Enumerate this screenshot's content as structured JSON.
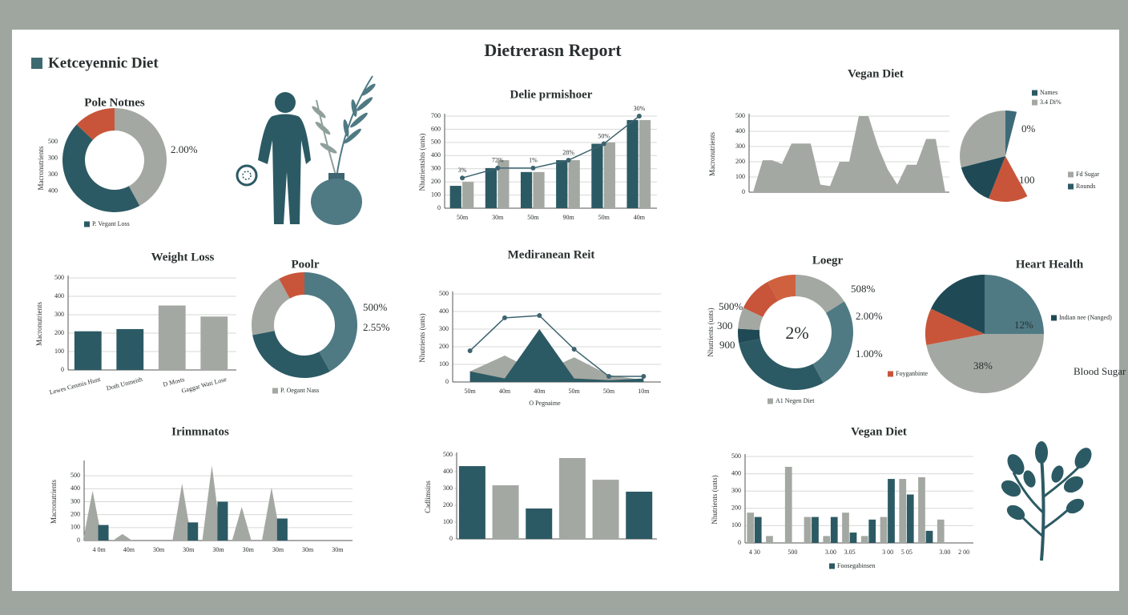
{
  "header": {
    "title": "Dietrerasn Report",
    "section": "Ketceyennic Diet"
  },
  "chart_data": [
    {
      "type": "pie",
      "title": "Pole Notnes",
      "hole": true,
      "values": [
        42,
        45,
        13
      ],
      "colors": [
        "#a4a8a2",
        "#2c5a64",
        "#c8553a"
      ],
      "annotations": [
        "2.00%"
      ],
      "legend": [
        {
          "name": "P. Vegant Loss",
          "color": "#2c5a64"
        }
      ],
      "ylabel": "Macronutrients",
      "scale_labels": [
        "500",
        "300",
        "300",
        "400"
      ]
    },
    {
      "type": "bar",
      "title": "Delie prmishoer",
      "ylabel": "Nhutrientshts (unts)",
      "categories": [
        "50m",
        "30m",
        "50m",
        "90m",
        "50m",
        "40m"
      ],
      "ylim": [
        0,
        700
      ],
      "yticks": [
        0,
        100,
        200,
        300,
        400,
        500,
        600,
        700
      ],
      "grid": true,
      "series": [
        {
          "color": "#2c5a64",
          "values": [
            170,
            305,
            275,
            365,
            490,
            670
          ]
        },
        {
          "color": "#a4a8a2",
          "values": [
            200,
            365,
            275,
            365,
            500,
            670
          ]
        },
        {
          "kind": "line",
          "color": "#3d6470",
          "values": [
            230,
            305,
            305,
            365,
            490,
            700
          ],
          "point_labels": [
            "3%",
            "72%",
            "1%",
            "28%",
            "50%",
            "30%"
          ]
        }
      ]
    },
    {
      "type": "area",
      "title": "Vegan Diet",
      "ylabel": "Macronutrients",
      "ylim": [
        0,
        500
      ],
      "yticks": [
        0,
        100,
        200,
        300,
        400,
        500
      ],
      "grid": true,
      "series": [
        {
          "color": "#a4a8a2",
          "values": [
            0,
            210,
            210,
            185,
            320,
            320,
            320,
            50,
            40,
            200,
            200,
            500,
            500,
            300,
            150,
            50,
            180,
            180,
            350,
            350,
            0
          ]
        }
      ]
    },
    {
      "type": "pie",
      "hole": false,
      "values": [
        4,
        38,
        14,
        15,
        29
      ],
      "colors": [
        "#3d6a78",
        "#ffffff",
        "#c8553a",
        "#1f4a55",
        "#a4a8a2"
      ],
      "annotations": [
        "0%",
        "100"
      ],
      "legend": [
        {
          "name": "Names",
          "color": "#2c5a64"
        },
        {
          "name": "3.4 Di%",
          "color": "#a4a8a2"
        },
        {
          "name": "Fd Sugar",
          "color": "#a4a8a2"
        },
        {
          "name": "Rounds",
          "color": "#2c5a64"
        }
      ]
    },
    {
      "type": "bar",
      "title": "Weight Loss",
      "ylabel": "Macronutrients",
      "categories": [
        "Lewes Cenmis Hunt",
        "Doth Unmeith",
        "D Mosts",
        "Gaggar Wati Lose"
      ],
      "ylim": [
        0,
        500
      ],
      "yticks": [
        0,
        100,
        200,
        300,
        400,
        500
      ],
      "grid": true,
      "series": [
        {
          "colors": [
            "#2c5a64",
            "#2c5a64",
            "#a4a8a2",
            "#a4a8a2"
          ],
          "values": [
            210,
            222,
            350,
            290
          ]
        }
      ]
    },
    {
      "type": "pie",
      "title": "Poolr",
      "hole": true,
      "values": [
        42,
        30,
        20,
        8
      ],
      "colors": [
        "#4f7a84",
        "#2c5a64",
        "#a4a8a2",
        "#c8553a"
      ],
      "annotations": [
        "500%",
        "2.55%"
      ],
      "legend": [
        {
          "name": "P. Oegant Nass",
          "color": "#a4a8a2"
        }
      ]
    },
    {
      "type": "line",
      "title": "Mediranean Reit",
      "ylabel": "Nhutrients (unts)",
      "xlabel": "O Pegnaime",
      "categories": [
        "50m",
        "40m",
        "40m",
        "50m",
        "50m",
        "10m"
      ],
      "ylim": [
        0,
        500
      ],
      "yticks": [
        0,
        100,
        200,
        300,
        400,
        500
      ],
      "grid": true,
      "series": [
        {
          "kind": "area",
          "color": "#a4a8a2",
          "values": [
            60,
            150,
            50,
            140,
            40,
            10
          ]
        },
        {
          "kind": "area",
          "color": "#2c5a64",
          "values": [
            60,
            20,
            300,
            20,
            10,
            20
          ]
        },
        {
          "kind": "line",
          "color": "#3d6470",
          "values": [
            177,
            364,
            377,
            186,
            32,
            32
          ]
        }
      ]
    },
    {
      "type": "pie",
      "title": "Loegr",
      "hole": true,
      "values": [
        16,
        26,
        30,
        4,
        6,
        10,
        8
      ],
      "colors": [
        "#a4a8a2",
        "#4f7a84",
        "#2c5a64",
        "#1f4a55",
        "#a4a8a2",
        "#c8553a",
        "#d0613f"
      ],
      "center_label": "2%",
      "annotations": [
        "508%",
        "2.00%",
        "1.00%",
        "500%",
        "300",
        "900"
      ],
      "legend": [
        {
          "name": "Foyganbinte",
          "color": "#c8553a"
        },
        {
          "name": "A1 Negen Diet",
          "color": "#a4a8a2"
        }
      ],
      "ylabel": "Nhutrients (unts)"
    },
    {
      "type": "pie",
      "title": "Heart Health",
      "hole": false,
      "values": [
        25,
        47,
        10,
        18
      ],
      "colors": [
        "#4f7a84",
        "#a4a8a2",
        "#c8553a",
        "#1f4a55"
      ],
      "annotations": [
        "12%",
        "38%",
        "Blood Sugar Control"
      ],
      "legend": [
        {
          "name": "Indian nee (Nanged)",
          "color": "#1f4a55"
        }
      ]
    },
    {
      "type": "area",
      "title": "Irinmnatos",
      "ylabel": "Macronutrients",
      "categories": [
        "4 0m",
        "40m",
        "30m",
        "30m",
        "30m",
        "30m",
        "30m",
        "30m",
        "30m"
      ],
      "ylim": [
        0,
        600
      ],
      "yticks": [
        0,
        100,
        200,
        300,
        400,
        500
      ],
      "grid": true,
      "series": [
        {
          "kind": "spike",
          "color": "#a4a8a2",
          "values": [
            385,
            50,
            0,
            440,
            580,
            260,
            410,
            0,
            0
          ]
        },
        {
          "kind": "bar",
          "color": "#2c5a64",
          "values": [
            120,
            0,
            0,
            140,
            300,
            0,
            170,
            0,
            0
          ]
        }
      ]
    },
    {
      "type": "bar",
      "ylabel": "Cadlimsins",
      "ylim": [
        0,
        500
      ],
      "yticks": [
        0,
        100,
        200,
        300,
        400,
        500
      ],
      "grid": false,
      "series": [
        {
          "colors": [
            "#2c5a64",
            "#a4a8a2",
            "#2c5a64",
            "#a4a8a2",
            "#a4a8a2",
            "#2c5a64"
          ],
          "values": [
            433,
            319,
            181,
            481,
            352,
            281
          ]
        }
      ]
    },
    {
      "type": "bar",
      "title": "Vegan Diet",
      "ylabel": "Nhutrients (unts)",
      "categories": [
        "4 30",
        null,
        "500",
        null,
        "3.00",
        "3.05",
        null,
        "3 00",
        "5 05",
        null,
        "3.00",
        "2 00"
      ],
      "ylim": [
        0,
        500
      ],
      "yticks": [
        0,
        100,
        200,
        300,
        400,
        500
      ],
      "grid": true,
      "legend": [
        {
          "name": "Foosegabinsen",
          "color": "#2c5a64"
        }
      ],
      "series": [
        {
          "color": "#a4a8a2",
          "values": [
            175,
            40,
            440,
            150,
            40,
            175,
            40,
            150,
            370,
            380,
            135,
            0
          ]
        },
        {
          "color": "#2c5a64",
          "values": [
            150,
            0,
            0,
            150,
            150,
            60,
            135,
            370,
            280,
            70,
            0,
            0
          ]
        }
      ]
    }
  ]
}
